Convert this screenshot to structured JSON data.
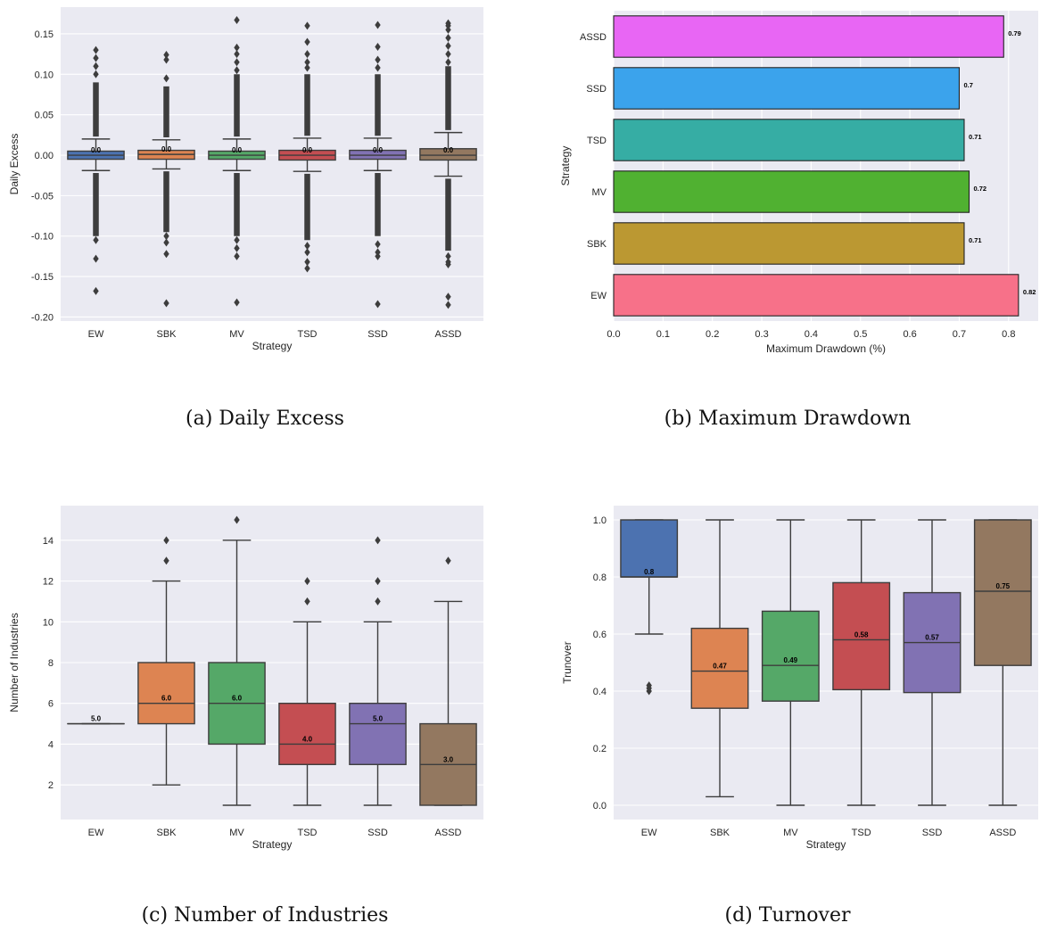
{
  "colors": {
    "plot_bg": "#eaeaf2",
    "grid": "#ffffff",
    "box_edge": "#3d3d3d",
    "palette_deep": [
      "#4c72b0",
      "#dd8452",
      "#55a868",
      "#c44e52",
      "#8172b3",
      "#937860"
    ],
    "palette_husl": [
      "#f77189",
      "#bb9832",
      "#50b131",
      "#36ada4",
      "#3ba3ec",
      "#e866f4"
    ]
  },
  "panels": {
    "a": {
      "caption": "(a) Daily Excess"
    },
    "b": {
      "caption": "(b) Maximum Drawdown"
    },
    "c": {
      "caption": "(c) Number of Industries"
    },
    "d": {
      "caption": "(d) Turnover"
    }
  },
  "chart_data": [
    {
      "id": "a",
      "type": "box",
      "xlabel": "Strategy",
      "ylabel": "Daily Excess",
      "categories": [
        "EW",
        "SBK",
        "MV",
        "TSD",
        "SSD",
        "ASSD"
      ],
      "ylim": [
        -0.205,
        0.183
      ],
      "yticks": [
        -0.2,
        -0.15,
        -0.1,
        -0.05,
        0.0,
        0.05,
        0.1,
        0.15
      ],
      "ytick_labels": [
        "-0.20",
        "-0.15",
        "-0.10",
        "-0.05",
        "0.00",
        "0.05",
        "0.10",
        "0.15"
      ],
      "grid": true,
      "boxes": [
        {
          "q1": -0.005,
          "median": 0.0,
          "q3": 0.005,
          "whislo": -0.019,
          "whishi": 0.02,
          "label": "0.0",
          "fliers_hi": [
            0.13,
            0.12,
            0.11,
            0.1
          ],
          "fliers_lo": [
            -0.105,
            -0.128,
            -0.168
          ],
          "dense_hi": [
            0.023,
            0.09
          ],
          "dense_lo": [
            -0.022,
            -0.1
          ]
        },
        {
          "q1": -0.005,
          "median": 0.001,
          "q3": 0.006,
          "whislo": -0.017,
          "whishi": 0.019,
          "label": "0.0",
          "fliers_hi": [
            0.124,
            0.118,
            0.095
          ],
          "fliers_lo": [
            -0.1,
            -0.108,
            -0.122,
            -0.183
          ],
          "dense_hi": [
            0.022,
            0.085
          ],
          "dense_lo": [
            -0.02,
            -0.095
          ]
        },
        {
          "q1": -0.005,
          "median": 0.0,
          "q3": 0.005,
          "whislo": -0.019,
          "whishi": 0.02,
          "label": "0.0",
          "fliers_hi": [
            0.167,
            0.133,
            0.125,
            0.115,
            0.105
          ],
          "fliers_lo": [
            -0.105,
            -0.115,
            -0.125,
            -0.182
          ],
          "dense_hi": [
            0.023,
            0.1
          ],
          "dense_lo": [
            -0.022,
            -0.1
          ]
        },
        {
          "q1": -0.006,
          "median": 0.0,
          "q3": 0.006,
          "whislo": -0.02,
          "whishi": 0.021,
          "label": "0.0",
          "fliers_hi": [
            0.16,
            0.14,
            0.125,
            0.115,
            0.108
          ],
          "fliers_lo": [
            -0.112,
            -0.12,
            -0.132,
            -0.14
          ],
          "dense_hi": [
            0.024,
            0.1
          ],
          "dense_lo": [
            -0.023,
            -0.105
          ]
        },
        {
          "q1": -0.005,
          "median": 0.0,
          "q3": 0.006,
          "whislo": -0.019,
          "whishi": 0.021,
          "label": "0.0",
          "fliers_hi": [
            0.161,
            0.134,
            0.118,
            0.108
          ],
          "fliers_lo": [
            -0.11,
            -0.12,
            -0.125,
            -0.184
          ],
          "dense_hi": [
            0.024,
            0.1
          ],
          "dense_lo": [
            -0.022,
            -0.1
          ]
        },
        {
          "q1": -0.006,
          "median": 0.0,
          "q3": 0.008,
          "whislo": -0.026,
          "whishi": 0.028,
          "label": "0.0",
          "fliers_hi": [
            0.163,
            0.16,
            0.155,
            0.145,
            0.135,
            0.125,
            0.115
          ],
          "fliers_lo": [
            -0.125,
            -0.132,
            -0.135,
            -0.175,
            -0.185
          ],
          "dense_hi": [
            0.031,
            0.11
          ],
          "dense_lo": [
            -0.029,
            -0.118
          ]
        }
      ]
    },
    {
      "id": "b",
      "type": "bar",
      "orientation": "horizontal",
      "xlabel": "Maximum Drawdown (%)",
      "ylabel": "Strategy",
      "categories": [
        "ASSD",
        "SSD",
        "TSD",
        "MV",
        "SBK",
        "EW"
      ],
      "values": [
        0.79,
        0.7,
        0.71,
        0.72,
        0.71,
        0.82
      ],
      "value_labels": [
        "0.79",
        "0.7",
        "0.71",
        "0.72",
        "0.71",
        "0.82"
      ],
      "xlim": [
        0,
        0.86
      ],
      "xticks": [
        0.0,
        0.1,
        0.2,
        0.3,
        0.4,
        0.5,
        0.6,
        0.7,
        0.8
      ],
      "xtick_labels": [
        "0.0",
        "0.1",
        "0.2",
        "0.3",
        "0.4",
        "0.5",
        "0.6",
        "0.7",
        "0.8"
      ],
      "grid": true
    },
    {
      "id": "c",
      "type": "box",
      "xlabel": "Strategy",
      "ylabel": "Number of Industries",
      "categories": [
        "EW",
        "SBK",
        "MV",
        "TSD",
        "SSD",
        "ASSD"
      ],
      "ylim": [
        0.3,
        15.7
      ],
      "yticks": [
        2,
        4,
        6,
        8,
        10,
        12,
        14
      ],
      "ytick_labels": [
        "2",
        "4",
        "6",
        "8",
        "10",
        "12",
        "14"
      ],
      "grid": true,
      "boxes": [
        {
          "q1": 5,
          "median": 5,
          "q3": 5,
          "whislo": 5,
          "whishi": 5,
          "label": "5.0",
          "fliers": []
        },
        {
          "q1": 5,
          "median": 6,
          "q3": 8,
          "whislo": 2,
          "whishi": 12,
          "label": "6.0",
          "fliers": [
            13,
            14
          ]
        },
        {
          "q1": 4,
          "median": 6,
          "q3": 8,
          "whislo": 1,
          "whishi": 14,
          "label": "6.0",
          "fliers": [
            15
          ]
        },
        {
          "q1": 3,
          "median": 4,
          "q3": 6,
          "whislo": 1,
          "whishi": 10,
          "label": "4.0",
          "fliers": [
            11,
            12
          ]
        },
        {
          "q1": 3,
          "median": 5,
          "q3": 6,
          "whislo": 1,
          "whishi": 10,
          "label": "5.0",
          "fliers": [
            11,
            12,
            14
          ]
        },
        {
          "q1": 1,
          "median": 3,
          "q3": 5,
          "whislo": 1,
          "whishi": 11,
          "label": "3.0",
          "fliers": [
            13
          ]
        }
      ]
    },
    {
      "id": "d",
      "type": "box",
      "xlabel": "Strategy",
      "ylabel": "Trunover",
      "categories": [
        "EW",
        "SBK",
        "MV",
        "TSD",
        "SSD",
        "ASSD"
      ],
      "ylim": [
        -0.05,
        1.05
      ],
      "yticks": [
        0.0,
        0.2,
        0.4,
        0.6,
        0.8,
        1.0
      ],
      "ytick_labels": [
        "0.0",
        "0.2",
        "0.4",
        "0.6",
        "0.8",
        "1.0"
      ],
      "grid": true,
      "boxes": [
        {
          "q1": 0.8,
          "median": 0.8,
          "q3": 1.0,
          "whislo": 0.6,
          "whishi": 1.0,
          "label": "0.8",
          "fliers": [
            0.42,
            0.41,
            0.4
          ]
        },
        {
          "q1": 0.34,
          "median": 0.47,
          "q3": 0.62,
          "whislo": 0.03,
          "whishi": 1.0,
          "label": "0.47",
          "fliers": []
        },
        {
          "q1": 0.365,
          "median": 0.49,
          "q3": 0.68,
          "whislo": 0.0,
          "whishi": 1.0,
          "label": "0.49",
          "fliers": []
        },
        {
          "q1": 0.405,
          "median": 0.58,
          "q3": 0.78,
          "whislo": 0.0,
          "whishi": 1.0,
          "label": "0.58",
          "fliers": []
        },
        {
          "q1": 0.395,
          "median": 0.57,
          "q3": 0.745,
          "whislo": 0.0,
          "whishi": 1.0,
          "label": "0.57",
          "fliers": []
        },
        {
          "q1": 0.49,
          "median": 0.75,
          "q3": 1.0,
          "whislo": 0.0,
          "whishi": 1.0,
          "label": "0.75",
          "fliers": []
        }
      ]
    }
  ]
}
